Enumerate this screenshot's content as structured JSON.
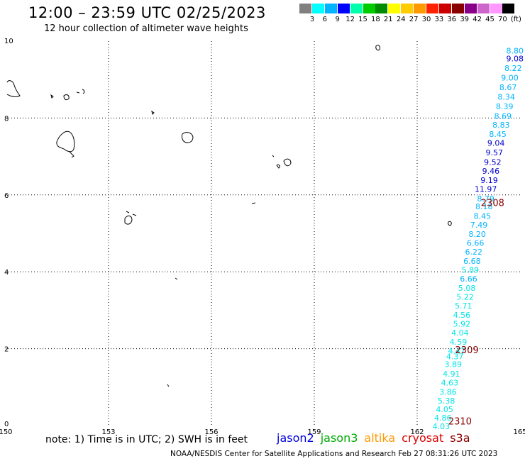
{
  "header": {
    "title": "12:00 – 23:59 UTC 02/25/2023",
    "subtitle": "12 hour collection of altimeter wave heights"
  },
  "colorbar": {
    "unit": "(ft)",
    "colors": [
      "#808080",
      "#00ffff",
      "#00b4ff",
      "#0000ff",
      "#00ffaa",
      "#00cc00",
      "#008c00",
      "#ffff00",
      "#ffcc00",
      "#ff9900",
      "#ff2200",
      "#cc0000",
      "#880000",
      "#880088",
      "#cc66cc",
      "#ff99ff",
      "#000000"
    ],
    "labels": [
      "3",
      "6",
      "9",
      "12",
      "15",
      "18",
      "21",
      "24",
      "27",
      "30",
      "33",
      "36",
      "39",
      "42",
      "45",
      "70"
    ]
  },
  "map": {
    "x_ticks": [
      "150",
      "153",
      "156",
      "159",
      "162",
      "165"
    ],
    "y_ticks": [
      "10",
      "8",
      "6",
      "4",
      "2",
      "0"
    ],
    "track_times": [
      {
        "label": "2308",
        "x": 164.2,
        "y": 5.8
      },
      {
        "label": "2309",
        "x": 163.45,
        "y": 1.97
      },
      {
        "label": "2310",
        "x": 163.25,
        "y": 0.12
      }
    ],
    "wave_heights": [
      {
        "v": "8.80",
        "x": 164.85,
        "y": 9.75,
        "c": "#00b4ff"
      },
      {
        "v": "9.08",
        "x": 164.85,
        "y": 9.55,
        "c": "#0000cc"
      },
      {
        "v": "8.22",
        "x": 164.8,
        "y": 9.3,
        "c": "#00b4ff"
      },
      {
        "v": "9.00",
        "x": 164.7,
        "y": 9.05,
        "c": "#00b4ff"
      },
      {
        "v": "8.67",
        "x": 164.65,
        "y": 8.8,
        "c": "#00b4ff"
      },
      {
        "v": "8.34",
        "x": 164.6,
        "y": 8.55,
        "c": "#00b4ff"
      },
      {
        "v": "8.39",
        "x": 164.55,
        "y": 8.3,
        "c": "#00b4ff"
      },
      {
        "v": "8.69",
        "x": 164.5,
        "y": 8.05,
        "c": "#00b4ff"
      },
      {
        "v": "8.83",
        "x": 164.45,
        "y": 7.82,
        "c": "#00b4ff"
      },
      {
        "v": "8.45",
        "x": 164.35,
        "y": 7.58,
        "c": "#00b4ff"
      },
      {
        "v": "9.04",
        "x": 164.3,
        "y": 7.35,
        "c": "#0000cc"
      },
      {
        "v": "9.57",
        "x": 164.25,
        "y": 7.1,
        "c": "#0000cc"
      },
      {
        "v": "9.52",
        "x": 164.2,
        "y": 6.85,
        "c": "#0000cc"
      },
      {
        "v": "9.46",
        "x": 164.15,
        "y": 6.62,
        "c": "#0000cc"
      },
      {
        "v": "9.19",
        "x": 164.1,
        "y": 6.38,
        "c": "#0000cc"
      },
      {
        "v": "11.97",
        "x": 164.0,
        "y": 6.15,
        "c": "#0000cc"
      },
      {
        "v": "8.79",
        "x": 164.0,
        "y": 5.9,
        "c": "#00b4ff"
      },
      {
        "v": "8.18",
        "x": 163.95,
        "y": 5.7,
        "c": "#00b4ff"
      },
      {
        "v": "8.45",
        "x": 163.9,
        "y": 5.45,
        "c": "#00b4ff"
      },
      {
        "v": "7.49",
        "x": 163.8,
        "y": 5.22,
        "c": "#00b4ff"
      },
      {
        "v": "8.20",
        "x": 163.75,
        "y": 4.98,
        "c": "#00b4ff"
      },
      {
        "v": "6.66",
        "x": 163.7,
        "y": 4.75,
        "c": "#00b4ff"
      },
      {
        "v": "6.22",
        "x": 163.65,
        "y": 4.52,
        "c": "#00b4ff"
      },
      {
        "v": "6.68",
        "x": 163.6,
        "y": 4.28,
        "c": "#00b4ff"
      },
      {
        "v": "5.89",
        "x": 163.55,
        "y": 4.05,
        "c": "#00e5e5"
      },
      {
        "v": "6.66",
        "x": 163.5,
        "y": 3.82,
        "c": "#00b4ff"
      },
      {
        "v": "5.08",
        "x": 163.45,
        "y": 3.58,
        "c": "#00e5e5"
      },
      {
        "v": "5.22",
        "x": 163.4,
        "y": 3.35,
        "c": "#00e5e5"
      },
      {
        "v": "5.71",
        "x": 163.35,
        "y": 3.12,
        "c": "#00e5e5"
      },
      {
        "v": "4.56",
        "x": 163.3,
        "y": 2.88,
        "c": "#00e5e5"
      },
      {
        "v": "5.92",
        "x": 163.3,
        "y": 2.65,
        "c": "#00e5e5"
      },
      {
        "v": "4.04",
        "x": 163.25,
        "y": 2.42,
        "c": "#00e5e5"
      },
      {
        "v": "4.59",
        "x": 163.2,
        "y": 2.18,
        "c": "#00e5e5"
      },
      {
        "v": "4.47",
        "x": 163.15,
        "y": 1.95,
        "c": "#00e5e5"
      },
      {
        "v": "4.37",
        "x": 163.1,
        "y": 1.8,
        "c": "#00e5e5"
      },
      {
        "v": "3.89",
        "x": 163.05,
        "y": 1.6,
        "c": "#00e5e5"
      },
      {
        "v": "4.91",
        "x": 163.0,
        "y": 1.35,
        "c": "#00e5e5"
      },
      {
        "v": "4.63",
        "x": 162.95,
        "y": 1.12,
        "c": "#00e5e5"
      },
      {
        "v": "3.86",
        "x": 162.9,
        "y": 0.88,
        "c": "#00e5e5"
      },
      {
        "v": "5.38",
        "x": 162.85,
        "y": 0.65,
        "c": "#00e5e5"
      },
      {
        "v": "4.05",
        "x": 162.8,
        "y": 0.42,
        "c": "#00e5e5"
      },
      {
        "v": "4.86",
        "x": 162.75,
        "y": 0.2,
        "c": "#00e5e5"
      },
      {
        "v": "4.03",
        "x": 162.7,
        "y": -0.02,
        "c": "#00e5e5"
      }
    ]
  },
  "footer": {
    "note": "note:  1) Time is in UTC;  2) SWH is in feet",
    "satellites": [
      {
        "name": "jason2",
        "color": "#0000dd"
      },
      {
        "name": "jason3",
        "color": "#00aa00"
      },
      {
        "name": "altika",
        "color": "#ff9900"
      },
      {
        "name": "cryosat",
        "color": "#dd0000"
      },
      {
        "name": "s3a",
        "color": "#880000"
      }
    ],
    "credit": "NOAA/NESDIS Center for Satellite Applications and Research    Feb 27 08:31:26 UTC 2023"
  }
}
